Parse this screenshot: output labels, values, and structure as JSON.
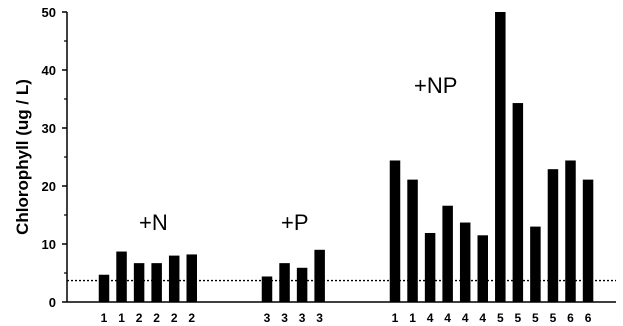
{
  "chart_data": {
    "type": "bar",
    "title": "",
    "xlabel": "",
    "ylabel": "Chlorophyll  (ug / L)",
    "ylim": [
      0,
      50
    ],
    "yticks": [
      0,
      10,
      20,
      30,
      40,
      50
    ],
    "grid": false,
    "legend": "none",
    "bar_color": "#000000",
    "reference_line": {
      "y": 3.7,
      "style": "dotted"
    },
    "groups": [
      {
        "label": "+N",
        "categories": [
          "1",
          "1",
          "2",
          "2",
          "2",
          "2"
        ],
        "values": [
          4.7,
          8.7,
          6.7,
          6.7,
          8.0,
          8.2
        ]
      },
      {
        "label": "+P",
        "categories": [
          "3",
          "3",
          "3",
          "3"
        ],
        "values": [
          4.4,
          6.7,
          5.9,
          9.0
        ]
      },
      {
        "label": "+NP",
        "categories": [
          "1",
          "1",
          "4",
          "4",
          "4",
          "4",
          "5",
          "5",
          "5",
          "5",
          "6",
          "6"
        ],
        "values": [
          24.4,
          21.1,
          11.9,
          16.6,
          13.7,
          11.5,
          50.0,
          34.3,
          13.0,
          22.9,
          24.4,
          21.1
        ]
      }
    ]
  }
}
